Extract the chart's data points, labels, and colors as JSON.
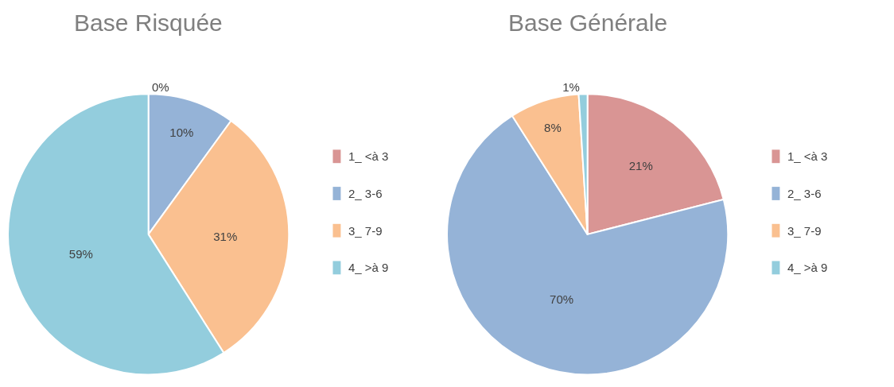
{
  "chart_data": [
    {
      "type": "pie",
      "title": "Base Risquée",
      "categories": [
        "1_ <à 3",
        "2_ 3-6",
        "3_ 7-9",
        "4_ >à 9"
      ],
      "values": [
        0,
        10,
        31,
        59
      ],
      "value_labels": [
        "0%",
        "10%",
        "31%",
        "59%"
      ],
      "colors": [
        "#d99594",
        "#95b3d7",
        "#fac090",
        "#93cddd"
      ],
      "legend": "right"
    },
    {
      "type": "pie",
      "title": "Base Générale",
      "categories": [
        "1_ <à 3",
        "2_ 3-6",
        "3_ 7-9",
        "4_ >à 9"
      ],
      "values": [
        21,
        70,
        8,
        1
      ],
      "value_labels": [
        "21%",
        "70%",
        "8%",
        "1%"
      ],
      "colors": [
        "#d99594",
        "#95b3d7",
        "#fac090",
        "#93cddd"
      ],
      "legend": "right"
    }
  ]
}
